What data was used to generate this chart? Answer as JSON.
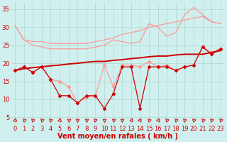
{
  "background_color": "#cff0ee",
  "grid_color": "#b0d8d0",
  "xlabel": "Vent moyen/en rafales ( km/h )",
  "xlabel_color": "#cc0000",
  "xlabel_fontsize": 7,
  "tick_color": "#cc0000",
  "tick_fontsize": 6,
  "ylim": [
    3,
    37
  ],
  "xlim": [
    -0.5,
    23.5
  ],
  "yticks": [
    5,
    10,
    15,
    20,
    25,
    30,
    35
  ],
  "xticks": [
    0,
    1,
    2,
    3,
    4,
    5,
    6,
    7,
    8,
    9,
    10,
    11,
    12,
    13,
    14,
    15,
    16,
    17,
    18,
    19,
    20,
    21,
    22,
    23
  ],
  "series": [
    {
      "name": "rafales_upper",
      "color": "#ff9999",
      "linewidth": 0.9,
      "marker": null,
      "y": [
        30.5,
        26.5,
        26.0,
        26.0,
        25.5,
        25.5,
        25.5,
        25.5,
        25.5,
        26.0,
        26.5,
        27.0,
        28.0,
        28.5,
        29.0,
        30.0,
        30.5,
        31.0,
        31.5,
        32.0,
        32.5,
        33.0,
        31.5,
        31.0
      ]
    },
    {
      "name": "rafales_upper2",
      "color": "#ff9999",
      "linewidth": 0.9,
      "marker": null,
      "y": [
        30.5,
        26.5,
        25.0,
        24.5,
        24.0,
        24.0,
        24.0,
        24.0,
        24.0,
        24.5,
        25.0,
        26.5,
        26.0,
        25.5,
        26.0,
        31.0,
        30.0,
        27.5,
        28.5,
        33.5,
        35.5,
        33.5,
        31.5,
        31.0
      ]
    },
    {
      "name": "vent_moy_light",
      "color": "#ff9999",
      "linewidth": 0.9,
      "marker": "D",
      "markersize": 2.5,
      "y": [
        18.0,
        19.0,
        17.5,
        19.0,
        15.5,
        15.0,
        13.5,
        9.0,
        10.5,
        11.0,
        19.5,
        13.5,
        19.5,
        19.5,
        19.0,
        20.5,
        19.0,
        19.5,
        18.0,
        19.0,
        19.5,
        24.5,
        23.0,
        24.0
      ]
    },
    {
      "name": "vent_moy_trend",
      "color": "#cc0000",
      "linewidth": 1.4,
      "marker": null,
      "y": [
        18.0,
        18.5,
        18.8,
        19.0,
        19.3,
        19.5,
        19.8,
        20.0,
        20.3,
        20.5,
        20.5,
        20.8,
        21.0,
        21.3,
        21.5,
        21.8,
        22.0,
        22.0,
        22.3,
        22.5,
        22.5,
        22.5,
        23.0,
        23.5
      ]
    },
    {
      "name": "rafales_dark",
      "color": "#cc0000",
      "linewidth": 0.9,
      "marker": "D",
      "markersize": 2.5,
      "y": [
        18.0,
        19.0,
        17.5,
        19.0,
        15.5,
        11.0,
        11.0,
        9.0,
        11.0,
        11.0,
        7.5,
        11.5,
        19.0,
        19.0,
        7.5,
        19.0,
        19.0,
        19.0,
        18.0,
        19.0,
        19.5,
        24.5,
        22.5,
        24.0
      ]
    }
  ],
  "wind_icons": [
    "k",
    "k",
    "k",
    "k",
    "k",
    "k",
    "l",
    "l",
    "l",
    "k",
    "l",
    "l",
    "l",
    "k",
    "u",
    "k",
    "u",
    "k",
    "k",
    "k",
    "k",
    "k",
    "k",
    "k"
  ],
  "wind_icon_color": "#cc0000",
  "wind_y": 4.2
}
